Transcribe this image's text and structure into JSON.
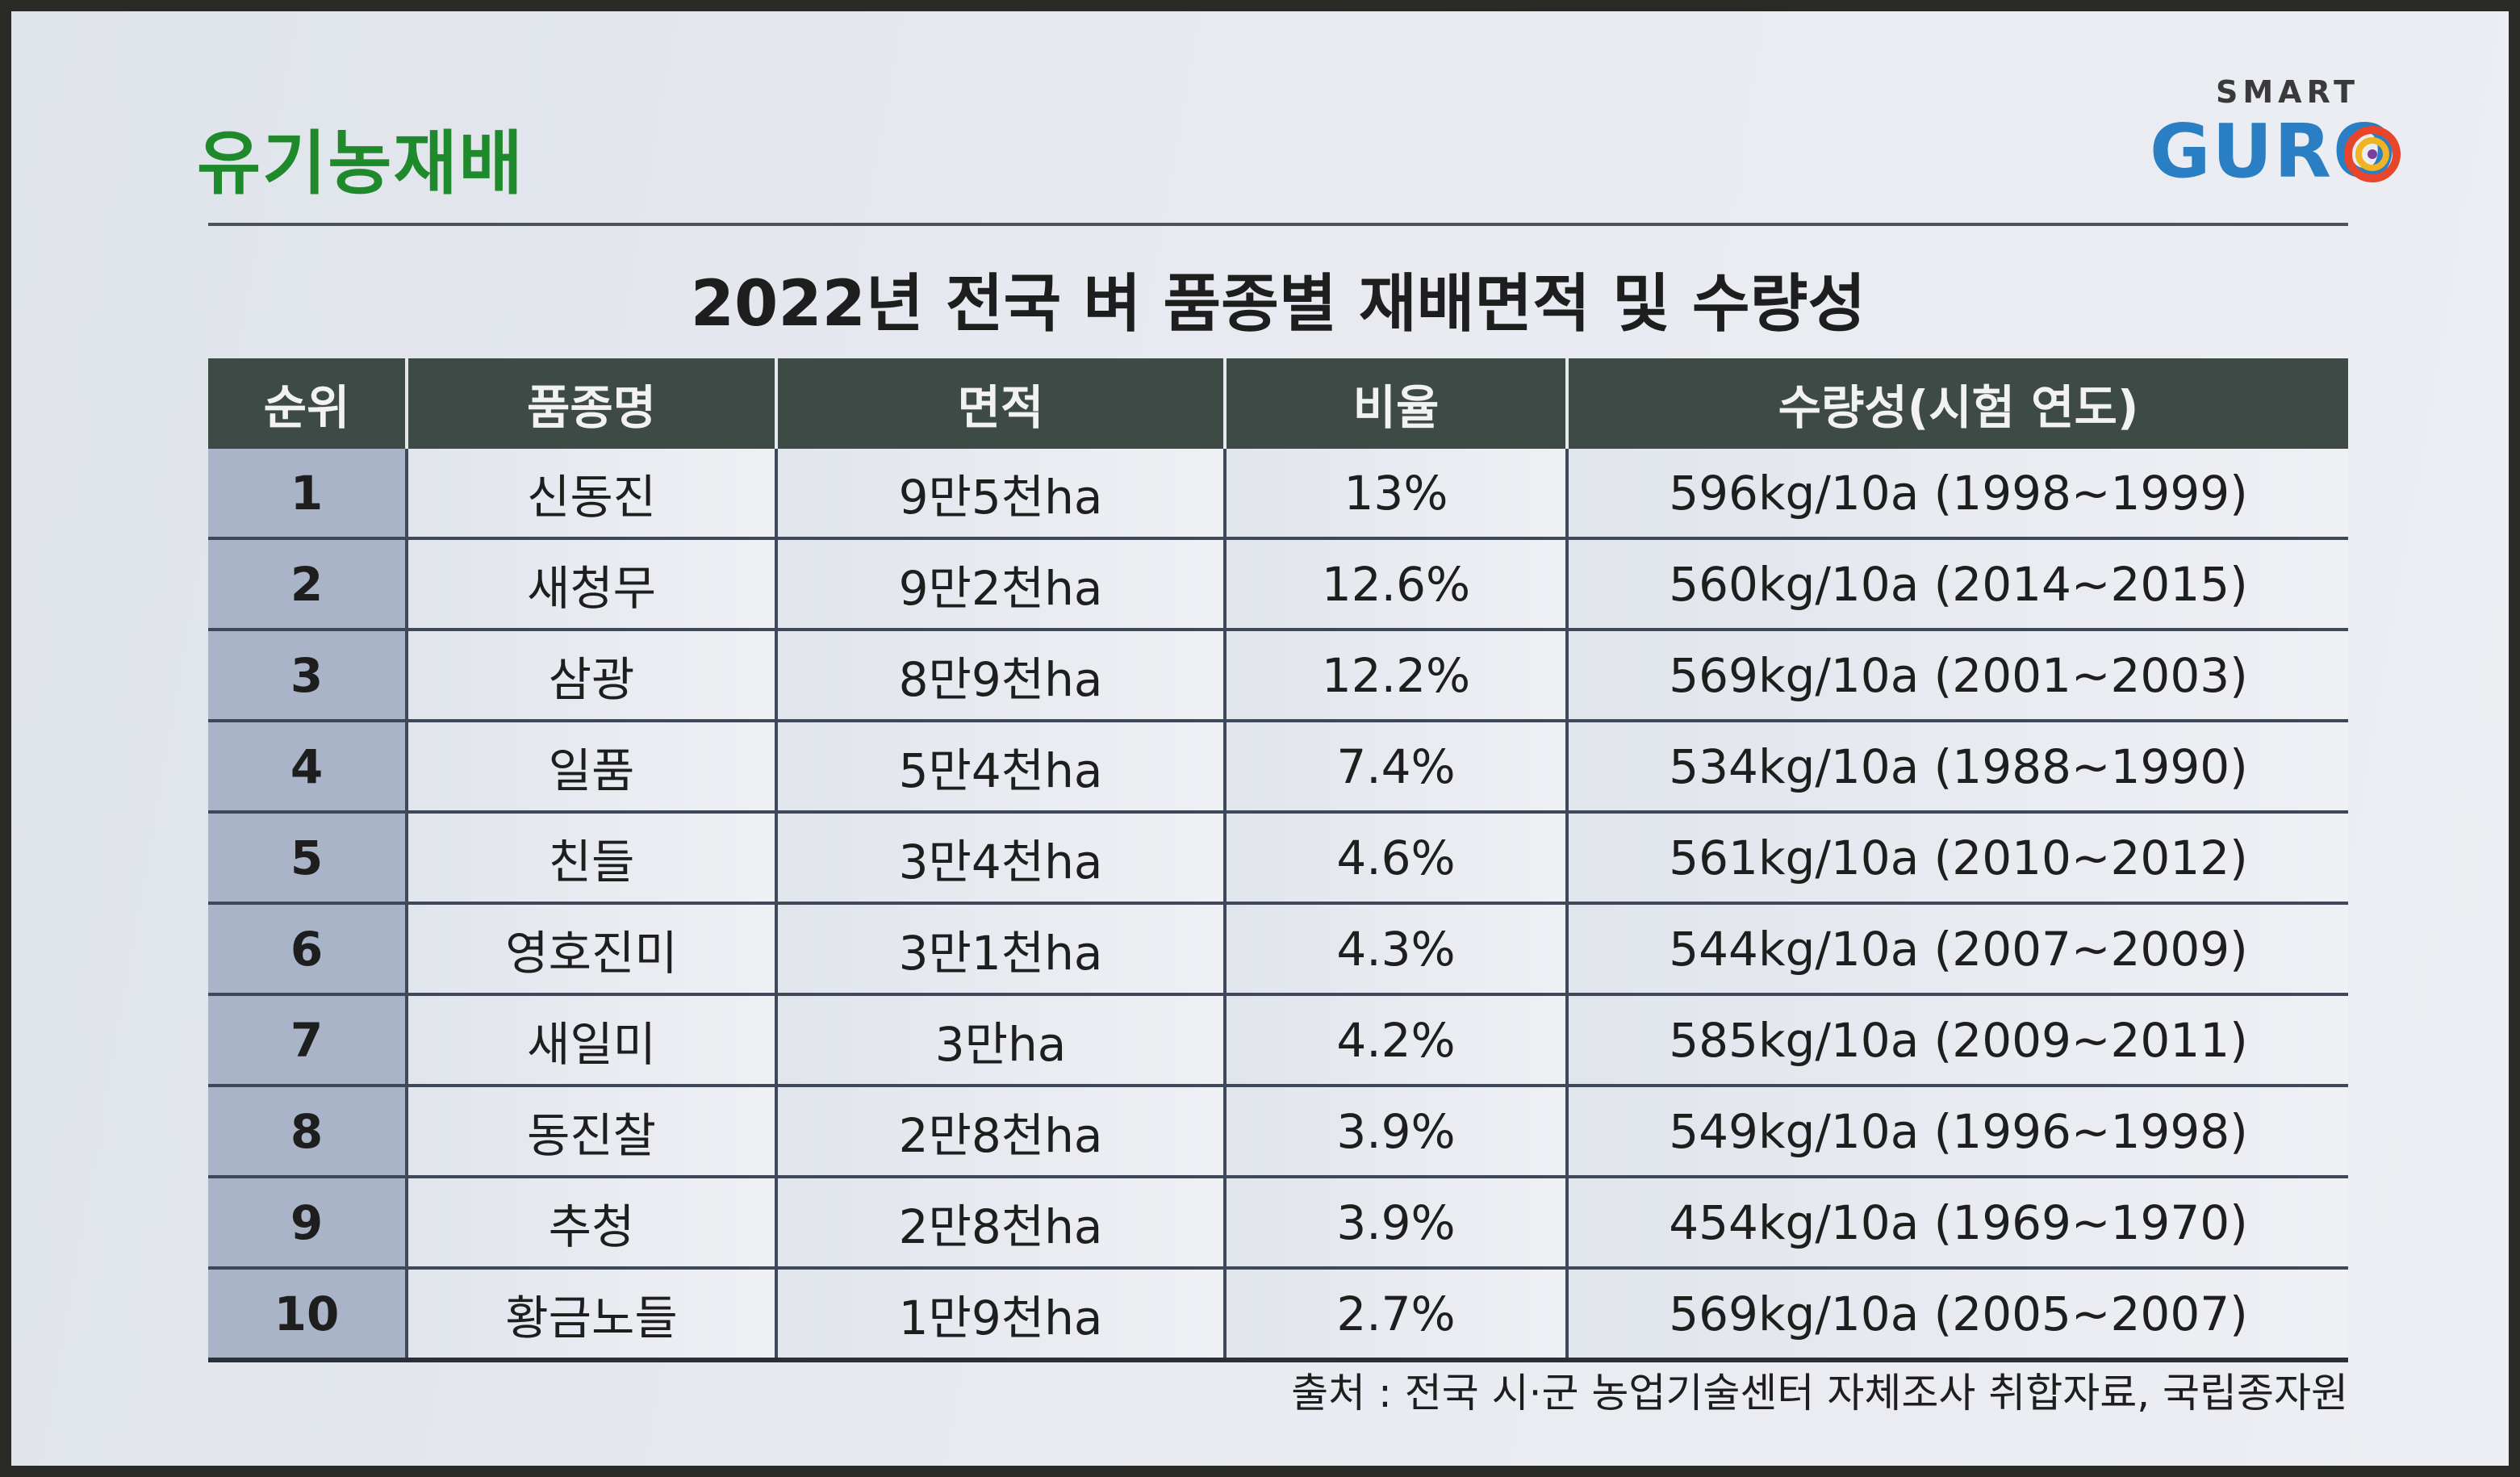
{
  "header": {
    "title": "유기농재배"
  },
  "logo": {
    "top_text": "SMART",
    "main_text": "GURO"
  },
  "table": {
    "title": "2022년 전국 벼 품종별 재배면적 및 수량성",
    "columns": [
      "순위",
      "품종명",
      "면적",
      "비율",
      "수량성(시험 연도)"
    ],
    "rows": [
      [
        "1",
        "신동진",
        "9만5천ha",
        "13%",
        "596kg/10a (1998~1999)"
      ],
      [
        "2",
        "새청무",
        "9만2천ha",
        "12.6%",
        "560kg/10a (2014~2015)"
      ],
      [
        "3",
        "삼광",
        "8만9천ha",
        "12.2%",
        "569kg/10a (2001~2003)"
      ],
      [
        "4",
        "일품",
        "5만4천ha",
        "7.4%",
        "534kg/10a (1988~1990)"
      ],
      [
        "5",
        "친들",
        "3만4천ha",
        "4.6%",
        "561kg/10a (2010~2012)"
      ],
      [
        "6",
        "영호진미",
        "3만1천ha",
        "4.3%",
        "544kg/10a (2007~2009)"
      ],
      [
        "7",
        "새일미",
        "3만ha",
        "4.2%",
        "585kg/10a (2009~2011)"
      ],
      [
        "8",
        "동진찰",
        "2만8천ha",
        "3.9%",
        "549kg/10a (1996~1998)"
      ],
      [
        "9",
        "추청",
        "2만8천ha",
        "3.9%",
        "454kg/10a (1969~1970)"
      ],
      [
        "10",
        "황금노들",
        "1만9천ha",
        "2.7%",
        "569kg/10a (2005~2007)"
      ]
    ],
    "source": "출처 : 전국 시·군 농업기술센터 자체조사 취합자료, 국립종자원"
  }
}
